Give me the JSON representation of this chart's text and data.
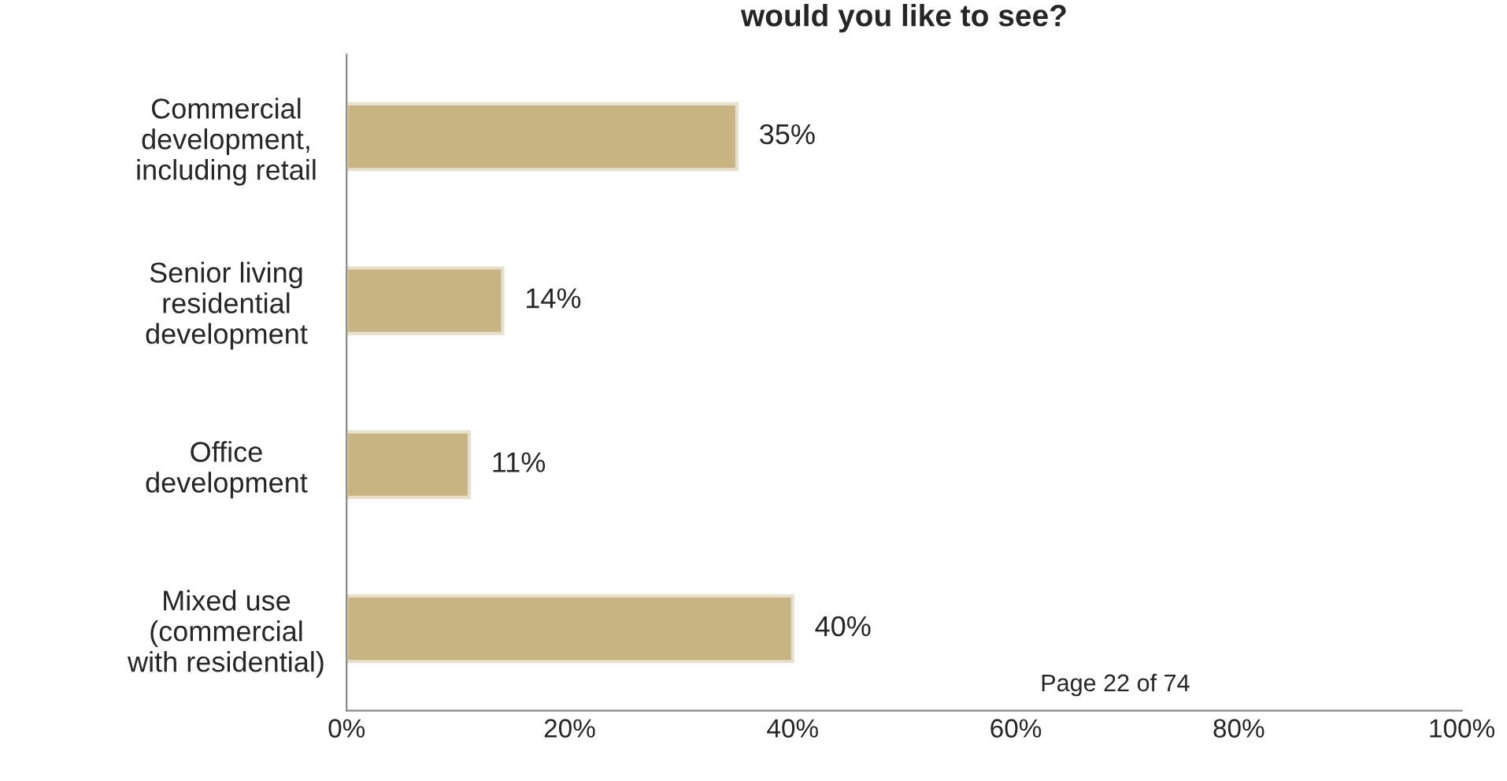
{
  "chart_data": {
    "type": "bar",
    "orientation": "horizontal",
    "title": "would you like to see?",
    "categories": [
      "Commercial\ndevelopment,\nincluding retail",
      "Senior living\nresidential\ndevelopment",
      "Office\ndevelopment",
      "Mixed use\n(commercial\nwith residential)"
    ],
    "values": [
      35,
      14,
      11,
      40
    ],
    "value_labels": [
      "35%",
      "14%",
      "11%",
      "40%"
    ],
    "color": "#c8b482",
    "xlim": [
      0,
      100
    ],
    "xticks": [
      {
        "value": 0,
        "label": "0%"
      },
      {
        "value": 20,
        "label": "20%"
      },
      {
        "value": 40,
        "label": "40%"
      },
      {
        "value": 60,
        "label": "60%"
      },
      {
        "value": 80,
        "label": "80%"
      },
      {
        "value": 100,
        "label": "100%"
      }
    ],
    "annotations": [
      "Page 22 of 74"
    ],
    "grid": false,
    "legend": false
  }
}
